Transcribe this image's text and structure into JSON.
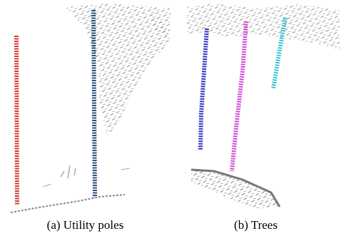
{
  "captions": [
    "(a) Utility poles",
    "(b) Trees"
  ]
}
